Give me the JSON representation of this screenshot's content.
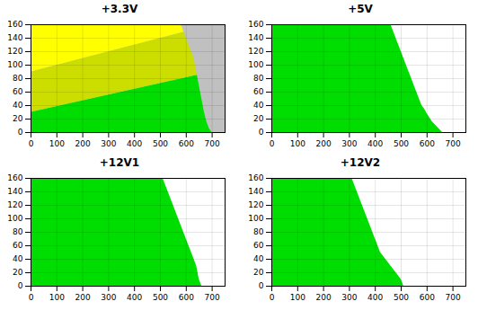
{
  "chart_data": [
    {
      "type": "area",
      "title": "+3.3V",
      "xlim": [
        0,
        750
      ],
      "ylim": [
        0,
        160
      ],
      "xticks": [
        0,
        100,
        200,
        300,
        400,
        500,
        600,
        700
      ],
      "yticks": [
        0,
        20,
        40,
        60,
        80,
        100,
        120,
        140,
        160
      ],
      "grid": true,
      "series": [
        {
          "color": "#ffff00",
          "x": [
            0,
            700
          ],
          "values": [
            160,
            160
          ],
          "base": [
            90,
            160
          ]
        },
        {
          "color": "#ccdd00",
          "x": [
            0,
            700
          ],
          "values": [
            90,
            160
          ],
          "base": [
            30,
            90
          ]
        },
        {
          "color": "#00dd00",
          "x": [
            0,
            700
          ],
          "values": [
            30,
            90
          ]
        },
        {
          "color": "#c0c0c0",
          "x": [
            580,
            590,
            600,
            610,
            620,
            630,
            640,
            650,
            660,
            670,
            680,
            690,
            700,
            750
          ],
          "values": [
            160,
            160,
            160,
            160,
            160,
            160,
            160,
            160,
            160,
            160,
            160,
            160,
            160,
            160
          ],
          "base": [
            160,
            150,
            140,
            130,
            120,
            110,
            90,
            70,
            50,
            30,
            15,
            5,
            0,
            0
          ]
        }
      ]
    },
    {
      "type": "area",
      "title": "+5V",
      "xlim": [
        0,
        750
      ],
      "ylim": [
        0,
        160
      ],
      "xticks": [
        0,
        100,
        200,
        300,
        400,
        500,
        600,
        700
      ],
      "yticks": [
        0,
        20,
        40,
        60,
        80,
        100,
        120,
        140,
        160
      ],
      "grid": true,
      "series": [
        {
          "color": "#00dd00",
          "x": [
            0,
            460,
            470,
            480,
            490,
            500,
            510,
            520,
            530,
            540,
            550,
            560,
            570,
            580,
            590,
            600,
            610,
            620,
            630,
            640,
            650,
            660
          ],
          "values": [
            160,
            160,
            150,
            140,
            130,
            120,
            110,
            100,
            90,
            80,
            70,
            60,
            50,
            40,
            35,
            28,
            22,
            16,
            12,
            8,
            4,
            0
          ]
        }
      ]
    },
    {
      "type": "area",
      "title": "+12V1",
      "xlim": [
        0,
        750
      ],
      "ylim": [
        0,
        160
      ],
      "xticks": [
        0,
        100,
        200,
        300,
        400,
        500,
        600,
        700
      ],
      "yticks": [
        0,
        20,
        40,
        60,
        80,
        100,
        120,
        140,
        160
      ],
      "grid": true,
      "series": [
        {
          "color": "#00dd00",
          "x": [
            0,
            510,
            520,
            530,
            540,
            550,
            560,
            570,
            580,
            590,
            600,
            610,
            620,
            630,
            640,
            650,
            660
          ],
          "values": [
            160,
            160,
            150,
            140,
            130,
            120,
            110,
            100,
            90,
            80,
            70,
            60,
            50,
            40,
            30,
            10,
            0
          ]
        }
      ]
    },
    {
      "type": "area",
      "title": "+12V2",
      "xlim": [
        0,
        750
      ],
      "ylim": [
        0,
        160
      ],
      "xticks": [
        0,
        100,
        200,
        300,
        400,
        500,
        600,
        700
      ],
      "yticks": [
        0,
        20,
        40,
        60,
        80,
        100,
        120,
        140,
        160
      ],
      "grid": true,
      "series": [
        {
          "color": "#00dd00",
          "x": [
            0,
            310,
            320,
            330,
            340,
            350,
            360,
            370,
            380,
            390,
            400,
            410,
            420,
            440,
            460,
            480,
            500,
            510
          ],
          "values": [
            160,
            160,
            150,
            140,
            130,
            120,
            110,
            100,
            90,
            80,
            70,
            60,
            50,
            40,
            30,
            20,
            10,
            0
          ]
        }
      ]
    }
  ]
}
